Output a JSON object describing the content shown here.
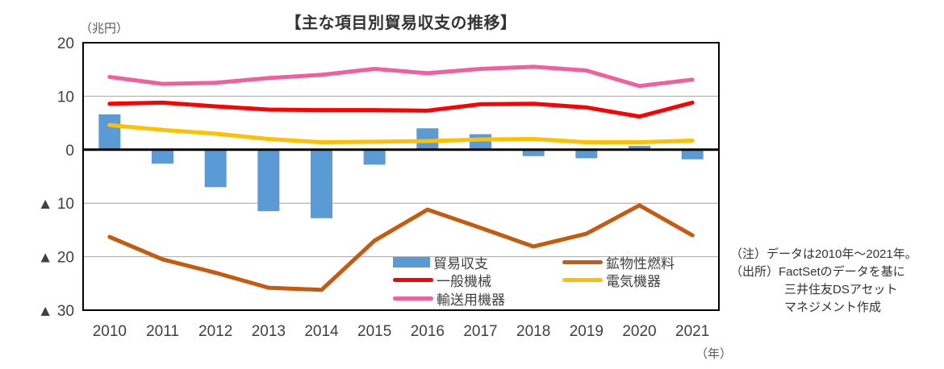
{
  "chart_data": {
    "type": "bar+line",
    "title": "【主な項目別貿易収支の推移】",
    "unit_label": "（兆円）",
    "x_unit_label": "（年）",
    "categories": [
      "2010",
      "2011",
      "2012",
      "2013",
      "2014",
      "2015",
      "2016",
      "2017",
      "2018",
      "2019",
      "2020",
      "2021"
    ],
    "ylim": [
      -30,
      20
    ],
    "yticks": [
      {
        "value": 20,
        "label": "20"
      },
      {
        "value": 10,
        "label": "10"
      },
      {
        "value": 0,
        "label": "0"
      },
      {
        "value": -10,
        "label": "▲ 10"
      },
      {
        "value": -20,
        "label": "▲ 20"
      },
      {
        "value": -30,
        "label": "▲ 30"
      }
    ],
    "grid": true,
    "legend_position": "inside-bottom",
    "series": [
      {
        "id": "trade-balance",
        "name": "貿易収支",
        "type": "bar",
        "color": "#5B9BD5",
        "values": [
          6.6,
          -2.6,
          -7.0,
          -11.5,
          -12.8,
          -2.8,
          4.0,
          2.9,
          -1.2,
          -1.6,
          0.7,
          -1.8
        ]
      },
      {
        "id": "general-machinery",
        "name": "一般機械",
        "type": "line",
        "color": "#FF0000",
        "values": [
          8.6,
          8.8,
          8.1,
          7.5,
          7.4,
          7.4,
          7.3,
          8.5,
          8.6,
          7.9,
          6.2,
          8.8
        ]
      },
      {
        "id": "transport-equipment",
        "name": "輸送用機器",
        "type": "line",
        "color": "#F0609C",
        "values": [
          13.6,
          12.3,
          12.5,
          13.4,
          14.0,
          15.1,
          14.3,
          15.1,
          15.5,
          14.8,
          11.9,
          13.1
        ]
      },
      {
        "id": "mineral-fuels",
        "name": "鉱物性燃料",
        "type": "line",
        "color": "#C55A11",
        "values": [
          -16.3,
          -20.5,
          -23.0,
          -25.8,
          -26.2,
          -17.0,
          -11.2,
          -14.6,
          -18.1,
          -15.7,
          -10.4,
          -16.0
        ]
      },
      {
        "id": "electrical-equipment",
        "name": "電気機器",
        "type": "line",
        "color": "#FFC000",
        "values": [
          4.6,
          3.7,
          3.0,
          2.0,
          1.4,
          1.5,
          1.6,
          1.9,
          2.0,
          1.4,
          1.4,
          1.7
        ]
      }
    ],
    "legend_columns": [
      [
        "trade-balance",
        "general-machinery",
        "transport-equipment"
      ],
      [
        "mineral-fuels",
        "electrical-equipment"
      ]
    ]
  },
  "notes": [
    "（注）データは2010年～2021年。",
    "（出所）FactSetのデータを基に",
    "三井住友DSアセット",
    "マネジメント作成"
  ],
  "colors": {
    "grid": "#A6A6A6",
    "axis": "#000000",
    "tick_text": "#404040"
  }
}
